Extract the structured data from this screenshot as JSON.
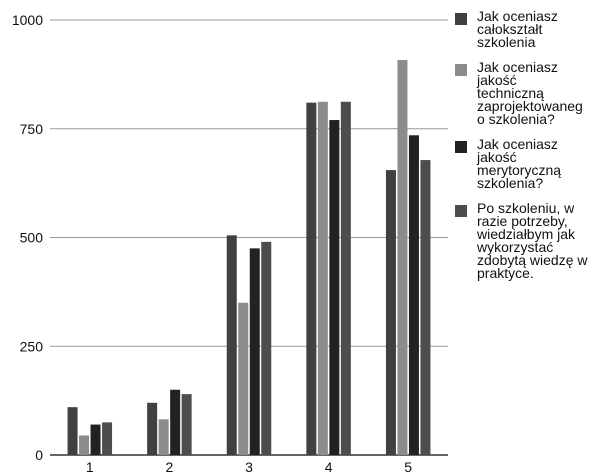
{
  "chart_data": {
    "type": "bar",
    "categories": [
      "1",
      "2",
      "3",
      "4",
      "5"
    ],
    "ylim": [
      0,
      1000
    ],
    "yticks": [
      "0",
      "250",
      "500",
      "750",
      "1000"
    ],
    "grid": true,
    "legend_position": "right",
    "series": [
      {
        "name": "Jak oceniasz\ncałokształt\nszkolenia",
        "color": "#404040",
        "values": [
          110,
          120,
          505,
          810,
          655
        ]
      },
      {
        "name": "Jak oceniasz\njakość\ntechniczną\nzaprojektowaneg\no szkolenia?",
        "color": "#8c8c8c",
        "values": [
          45,
          82,
          350,
          812,
          908
        ]
      },
      {
        "name": "Jak oceniasz\njakość\nmerytoryczną\nszkolenia?",
        "color": "#222222",
        "values": [
          70,
          150,
          475,
          770,
          735
        ]
      },
      {
        "name": "Po szkoleniu, w\nrazie potrzeby,\nwiedziałbym jak\nwykorzystać\nzdobytą wiedzę w\npraktyce.",
        "color": "#4d4d4d",
        "values": [
          75,
          140,
          490,
          812,
          678
        ]
      }
    ]
  }
}
